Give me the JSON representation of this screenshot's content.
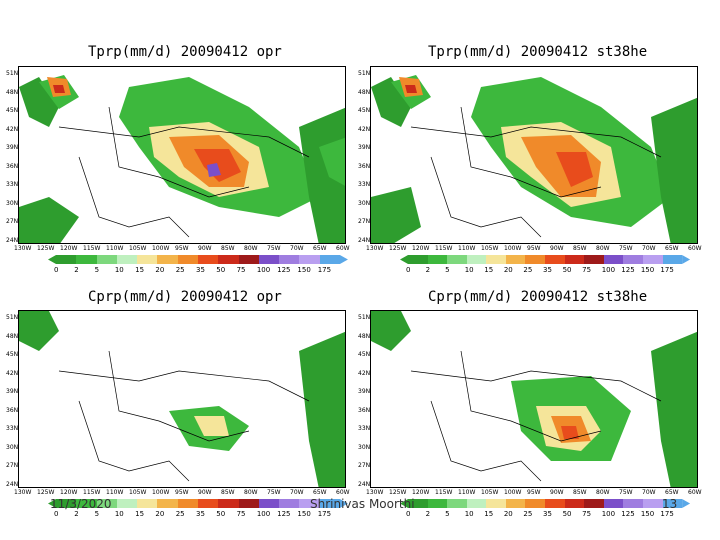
{
  "panels": [
    {
      "title": "Tprp(mm/d)  20090412  opr"
    },
    {
      "title": "Tprp(mm/d)  20090412  st38he"
    },
    {
      "title": "Cprp(mm/d)  20090412  opr"
    },
    {
      "title": "Cprp(mm/d)  20090412  st38he"
    }
  ],
  "lat_labels": [
    "51N",
    "48N",
    "45N",
    "42N",
    "39N",
    "36N",
    "33N",
    "30N",
    "27N",
    "24N"
  ],
  "lon_labels": [
    "130W",
    "125W",
    "120W",
    "115W",
    "110W",
    "105W",
    "100W",
    "95W",
    "90W",
    "85W",
    "80W",
    "75W",
    "70W",
    "65W",
    "60W"
  ],
  "colorbar": {
    "levels": [
      "0",
      "2",
      "5",
      "10",
      "15",
      "20",
      "25",
      "35",
      "50",
      "75",
      "100",
      "125",
      "150",
      "175"
    ],
    "colors": [
      "#2e9d2e",
      "#3db83d",
      "#7dd87d",
      "#bff0bf",
      "#f5e59a",
      "#f3b44a",
      "#f08a2a",
      "#e84c1c",
      "#cc2a1a",
      "#9e1a1a",
      "#7b4fc9",
      "#9f7de0",
      "#b99ff0",
      "#5aa8e8"
    ]
  },
  "footer": {
    "date": "11/3/2020",
    "author": "Shrinivas Moorthi",
    "page": "13"
  }
}
